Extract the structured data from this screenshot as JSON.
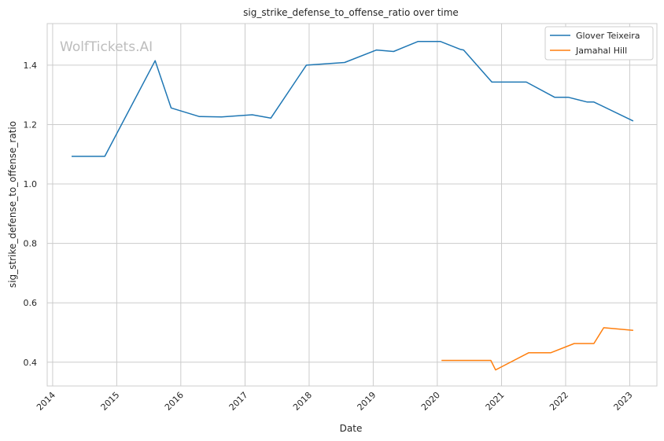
{
  "chart_data": {
    "type": "line",
    "title": "sig_strike_defense_to_offense_ratio over time",
    "xlabel": "Date",
    "ylabel": "sig_strike_defense_to_offense_ratio",
    "watermark": "WolfTickets.AI",
    "xlim": [
      "2013-12-01",
      "2023-06-05"
    ],
    "ylim": [
      0.32,
      1.54
    ],
    "x_ticks": [
      "2014",
      "2015",
      "2016",
      "2017",
      "2018",
      "2019",
      "2020",
      "2021",
      "2022",
      "2023"
    ],
    "y_ticks": [
      "0.4",
      "0.6",
      "0.8",
      "1.0",
      "1.2",
      "1.4"
    ],
    "grid": true,
    "legend_position": "top-right",
    "series": [
      {
        "name": "Glover Teixeira",
        "color": "#1f77b4",
        "points": [
          [
            "2014-04-19",
            1.093
          ],
          [
            "2014-10-25",
            1.093
          ],
          [
            "2015-08-08",
            1.415
          ],
          [
            "2015-11-07",
            1.256
          ],
          [
            "2016-04-16",
            1.227
          ],
          [
            "2016-08-20",
            1.226
          ],
          [
            "2017-02-11",
            1.233
          ],
          [
            "2017-05-28",
            1.222
          ],
          [
            "2017-12-16",
            1.4
          ],
          [
            "2018-07-22",
            1.409
          ],
          [
            "2019-01-20",
            1.451
          ],
          [
            "2019-04-27",
            1.446
          ],
          [
            "2019-09-14",
            1.48
          ],
          [
            "2020-01-18",
            1.48
          ],
          [
            "2020-05-13",
            1.453
          ],
          [
            "2020-05-30",
            1.451
          ],
          [
            "2020-11-07",
            1.343
          ],
          [
            "2021-05-22",
            1.343
          ],
          [
            "2021-10-30",
            1.292
          ],
          [
            "2022-01-15",
            1.292
          ],
          [
            "2022-05-04",
            1.276
          ],
          [
            "2022-06-11",
            1.276
          ],
          [
            "2023-01-21",
            1.212
          ]
        ]
      },
      {
        "name": "Jamahal Hill",
        "color": "#ff7f0e",
        "points": [
          [
            "2020-01-25",
            0.406
          ],
          [
            "2020-11-01",
            0.406
          ],
          [
            "2020-11-28",
            0.374
          ],
          [
            "2021-06-05",
            0.432
          ],
          [
            "2021-10-09",
            0.432
          ],
          [
            "2022-02-19",
            0.463
          ],
          [
            "2022-06-11",
            0.463
          ],
          [
            "2022-08-06",
            0.516
          ],
          [
            "2023-01-21",
            0.507
          ]
        ]
      }
    ]
  }
}
